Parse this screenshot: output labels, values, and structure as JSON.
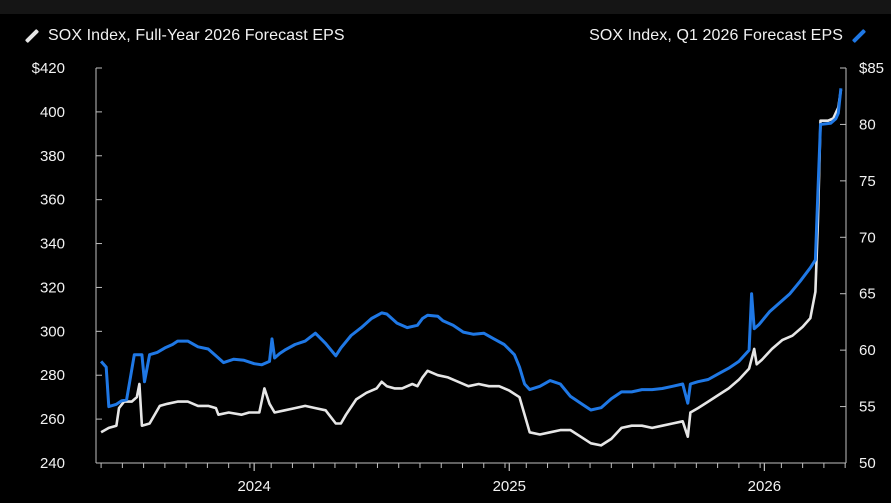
{
  "chart_data": {
    "type": "line",
    "series": [
      {
        "name": "SOX Index, Full-Year 2026 Forecast EPS",
        "axis": "left",
        "color": "#e6e6e6",
        "points": [
          [
            2023.4,
            254
          ],
          [
            2023.43,
            256
          ],
          [
            2023.46,
            257
          ],
          [
            2023.47,
            265
          ],
          [
            2023.49,
            268
          ],
          [
            2023.52,
            268
          ],
          [
            2023.54,
            270
          ],
          [
            2023.55,
            276
          ],
          [
            2023.56,
            257
          ],
          [
            2023.59,
            258
          ],
          [
            2023.63,
            266
          ],
          [
            2023.66,
            267
          ],
          [
            2023.7,
            268
          ],
          [
            2023.74,
            268
          ],
          [
            2023.78,
            266
          ],
          [
            2023.82,
            266
          ],
          [
            2023.85,
            265
          ],
          [
            2023.86,
            262
          ],
          [
            2023.9,
            263
          ],
          [
            2023.95,
            262
          ],
          [
            2023.98,
            263
          ],
          [
            2024.02,
            263
          ],
          [
            2024.04,
            274
          ],
          [
            2024.06,
            267
          ],
          [
            2024.08,
            263
          ],
          [
            2024.12,
            264
          ],
          [
            2024.16,
            265
          ],
          [
            2024.2,
            266
          ],
          [
            2024.24,
            265
          ],
          [
            2024.28,
            264
          ],
          [
            2024.32,
            258
          ],
          [
            2024.34,
            258
          ],
          [
            2024.36,
            262
          ],
          [
            2024.4,
            269
          ],
          [
            2024.44,
            272
          ],
          [
            2024.48,
            274
          ],
          [
            2024.5,
            277
          ],
          [
            2024.52,
            275
          ],
          [
            2024.55,
            274
          ],
          [
            2024.58,
            274
          ],
          [
            2024.62,
            276
          ],
          [
            2024.64,
            275
          ],
          [
            2024.66,
            279
          ],
          [
            2024.68,
            282
          ],
          [
            2024.72,
            280
          ],
          [
            2024.76,
            279
          ],
          [
            2024.8,
            277
          ],
          [
            2024.84,
            275
          ],
          [
            2024.88,
            276
          ],
          [
            2024.92,
            275
          ],
          [
            2024.96,
            275
          ],
          [
            2025.0,
            273
          ],
          [
            2025.04,
            270
          ],
          [
            2025.06,
            262
          ],
          [
            2025.08,
            254
          ],
          [
            2025.12,
            253
          ],
          [
            2025.16,
            254
          ],
          [
            2025.2,
            255
          ],
          [
            2025.24,
            255
          ],
          [
            2025.28,
            252
          ],
          [
            2025.32,
            249
          ],
          [
            2025.36,
            248
          ],
          [
            2025.4,
            251
          ],
          [
            2025.44,
            256
          ],
          [
            2025.48,
            257
          ],
          [
            2025.52,
            257
          ],
          [
            2025.56,
            256
          ],
          [
            2025.6,
            257
          ],
          [
            2025.64,
            258
          ],
          [
            2025.68,
            259
          ],
          [
            2025.7,
            252
          ],
          [
            2025.71,
            263
          ],
          [
            2025.74,
            265
          ],
          [
            2025.78,
            268
          ],
          [
            2025.82,
            271
          ],
          [
            2025.86,
            274
          ],
          [
            2025.9,
            278
          ],
          [
            2025.94,
            283
          ],
          [
            2025.96,
            292
          ],
          [
            2025.97,
            285
          ],
          [
            2025.99,
            287
          ],
          [
            2026.03,
            292
          ],
          [
            2026.07,
            296
          ],
          [
            2026.11,
            298
          ],
          [
            2026.15,
            302
          ],
          [
            2026.18,
            306
          ],
          [
            2026.2,
            318
          ],
          [
            2026.21,
            350
          ],
          [
            2026.22,
            396
          ],
          [
            2026.25,
            396
          ],
          [
            2026.27,
            397
          ],
          [
            2026.29,
            402
          ],
          [
            2026.3,
            410
          ]
        ]
      },
      {
        "name": "SOX Index, Q1 2026 Forecast EPS",
        "axis": "right",
        "color": "#1f78e5",
        "points": [
          [
            2023.4,
            59
          ],
          [
            2023.42,
            58.5
          ],
          [
            2023.43,
            55
          ],
          [
            2023.46,
            55.2
          ],
          [
            2023.48,
            55.5
          ],
          [
            2023.5,
            55.6
          ],
          [
            2023.53,
            59.6
          ],
          [
            2023.56,
            59.6
          ],
          [
            2023.57,
            57.2
          ],
          [
            2023.59,
            59.6
          ],
          [
            2023.62,
            59.8
          ],
          [
            2023.65,
            60.2
          ],
          [
            2023.68,
            60.5
          ],
          [
            2023.7,
            60.8
          ],
          [
            2023.74,
            60.8
          ],
          [
            2023.78,
            60.3
          ],
          [
            2023.82,
            60.1
          ],
          [
            2023.85,
            59.5
          ],
          [
            2023.88,
            58.9
          ],
          [
            2023.92,
            59.2
          ],
          [
            2023.96,
            59.1
          ],
          [
            2024.0,
            58.8
          ],
          [
            2024.03,
            58.7
          ],
          [
            2024.06,
            59.0
          ],
          [
            2024.07,
            61.0
          ],
          [
            2024.08,
            59.3
          ],
          [
            2024.1,
            59.7
          ],
          [
            2024.12,
            60.0
          ],
          [
            2024.16,
            60.5
          ],
          [
            2024.2,
            60.8
          ],
          [
            2024.24,
            61.5
          ],
          [
            2024.28,
            60.6
          ],
          [
            2024.32,
            59.5
          ],
          [
            2024.34,
            60.2
          ],
          [
            2024.38,
            61.3
          ],
          [
            2024.42,
            62.0
          ],
          [
            2024.46,
            62.8
          ],
          [
            2024.5,
            63.3
          ],
          [
            2024.52,
            63.2
          ],
          [
            2024.56,
            62.4
          ],
          [
            2024.6,
            62.0
          ],
          [
            2024.64,
            62.2
          ],
          [
            2024.66,
            62.8
          ],
          [
            2024.68,
            63.1
          ],
          [
            2024.72,
            63.0
          ],
          [
            2024.74,
            62.6
          ],
          [
            2024.78,
            62.2
          ],
          [
            2024.82,
            61.6
          ],
          [
            2024.86,
            61.4
          ],
          [
            2024.9,
            61.5
          ],
          [
            2024.94,
            61.0
          ],
          [
            2024.98,
            60.5
          ],
          [
            2025.02,
            59.6
          ],
          [
            2025.04,
            58.5
          ],
          [
            2025.06,
            57.0
          ],
          [
            2025.08,
            56.5
          ],
          [
            2025.12,
            56.8
          ],
          [
            2025.16,
            57.3
          ],
          [
            2025.2,
            57.0
          ],
          [
            2025.24,
            55.9
          ],
          [
            2025.28,
            55.3
          ],
          [
            2025.32,
            54.7
          ],
          [
            2025.36,
            54.9
          ],
          [
            2025.4,
            55.7
          ],
          [
            2025.44,
            56.3
          ],
          [
            2025.48,
            56.3
          ],
          [
            2025.52,
            56.5
          ],
          [
            2025.56,
            56.5
          ],
          [
            2025.6,
            56.6
          ],
          [
            2025.64,
            56.8
          ],
          [
            2025.68,
            57.0
          ],
          [
            2025.7,
            55.3
          ],
          [
            2025.71,
            57.0
          ],
          [
            2025.74,
            57.2
          ],
          [
            2025.78,
            57.4
          ],
          [
            2025.82,
            57.9
          ],
          [
            2025.86,
            58.4
          ],
          [
            2025.9,
            59.0
          ],
          [
            2025.94,
            60.0
          ],
          [
            2025.95,
            65.0
          ],
          [
            2025.96,
            61.9
          ],
          [
            2025.98,
            62.3
          ],
          [
            2026.02,
            63.4
          ],
          [
            2026.06,
            64.2
          ],
          [
            2026.1,
            65.0
          ],
          [
            2026.14,
            66.1
          ],
          [
            2026.18,
            67.3
          ],
          [
            2026.2,
            68.0
          ],
          [
            2026.21,
            74.0
          ],
          [
            2026.22,
            80.0
          ],
          [
            2026.26,
            80.1
          ],
          [
            2026.28,
            80.5
          ],
          [
            2026.29,
            81.0
          ],
          [
            2026.3,
            83.2
          ]
        ]
      }
    ],
    "x_ticks": [
      {
        "value": 2024,
        "label": "2024"
      },
      {
        "value": 2025,
        "label": "2025"
      },
      {
        "value": 2026,
        "label": "2026"
      }
    ],
    "xlim": [
      2023.38,
      2026.32
    ],
    "y_left": {
      "ylim": [
        240,
        420
      ],
      "ticks": [
        {
          "value": 420,
          "label": "$420"
        },
        {
          "value": 400,
          "label": "400"
        },
        {
          "value": 380,
          "label": "380"
        },
        {
          "value": 360,
          "label": "360"
        },
        {
          "value": 340,
          "label": "340"
        },
        {
          "value": 320,
          "label": "320"
        },
        {
          "value": 300,
          "label": "300"
        },
        {
          "value": 280,
          "label": "280"
        },
        {
          "value": 260,
          "label": "260"
        },
        {
          "value": 240,
          "label": "240"
        }
      ]
    },
    "y_right": {
      "ylim": [
        50,
        85
      ],
      "ticks": [
        {
          "value": 85,
          "label": "$85"
        },
        {
          "value": 80,
          "label": "80"
        },
        {
          "value": 75,
          "label": "75"
        },
        {
          "value": 70,
          "label": "70"
        },
        {
          "value": 65,
          "label": "65"
        },
        {
          "value": 60,
          "label": "60"
        },
        {
          "value": 55,
          "label": "55"
        },
        {
          "value": 50,
          "label": "50"
        }
      ]
    },
    "grid": false
  },
  "legend": {
    "left_label": "SOX Index, Full-Year 2026 Forecast EPS",
    "right_label": "SOX Index, Q1 2026 Forecast EPS"
  },
  "colors": {
    "background": "#000000",
    "axis": "#bfbfbf",
    "text": "#f2f2f2",
    "white_series": "#e6e6e6",
    "blue_series": "#1f78e5"
  }
}
